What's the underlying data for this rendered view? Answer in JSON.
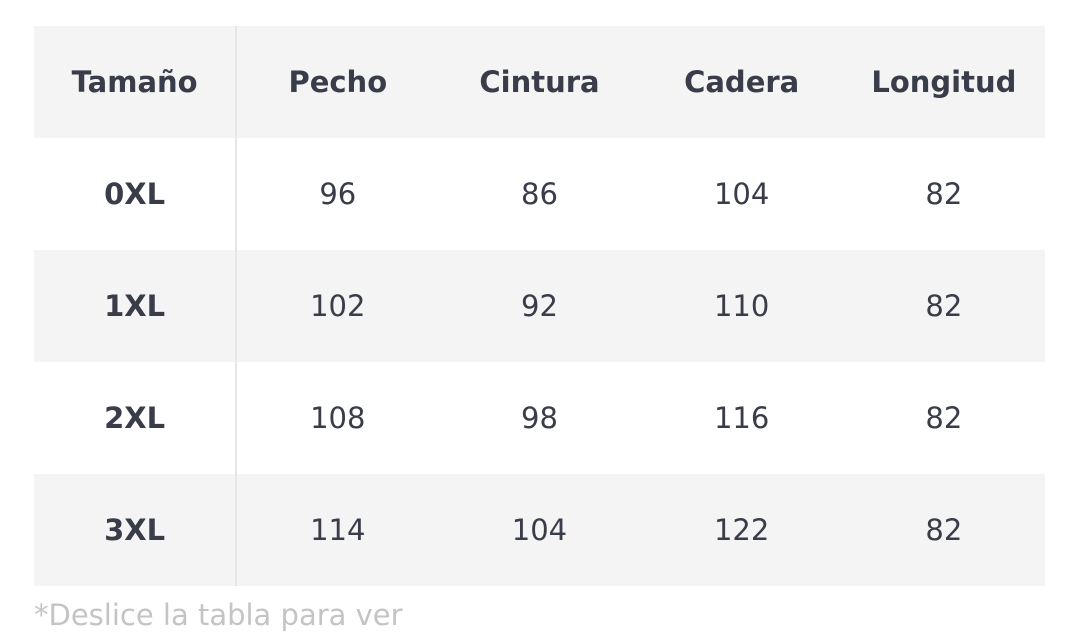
{
  "table": {
    "headers": [
      "Tamaño",
      "Pecho",
      "Cintura",
      "Cadera",
      "Longitud"
    ],
    "rows": [
      [
        "0XL",
        "96",
        "86",
        "104",
        "82"
      ],
      [
        "1XL",
        "102",
        "92",
        "110",
        "82"
      ],
      [
        "2XL",
        "108",
        "98",
        "116",
        "82"
      ],
      [
        "3XL",
        "114",
        "104",
        "122",
        "82"
      ]
    ]
  },
  "note": "*Deslice la tabla para ver"
}
